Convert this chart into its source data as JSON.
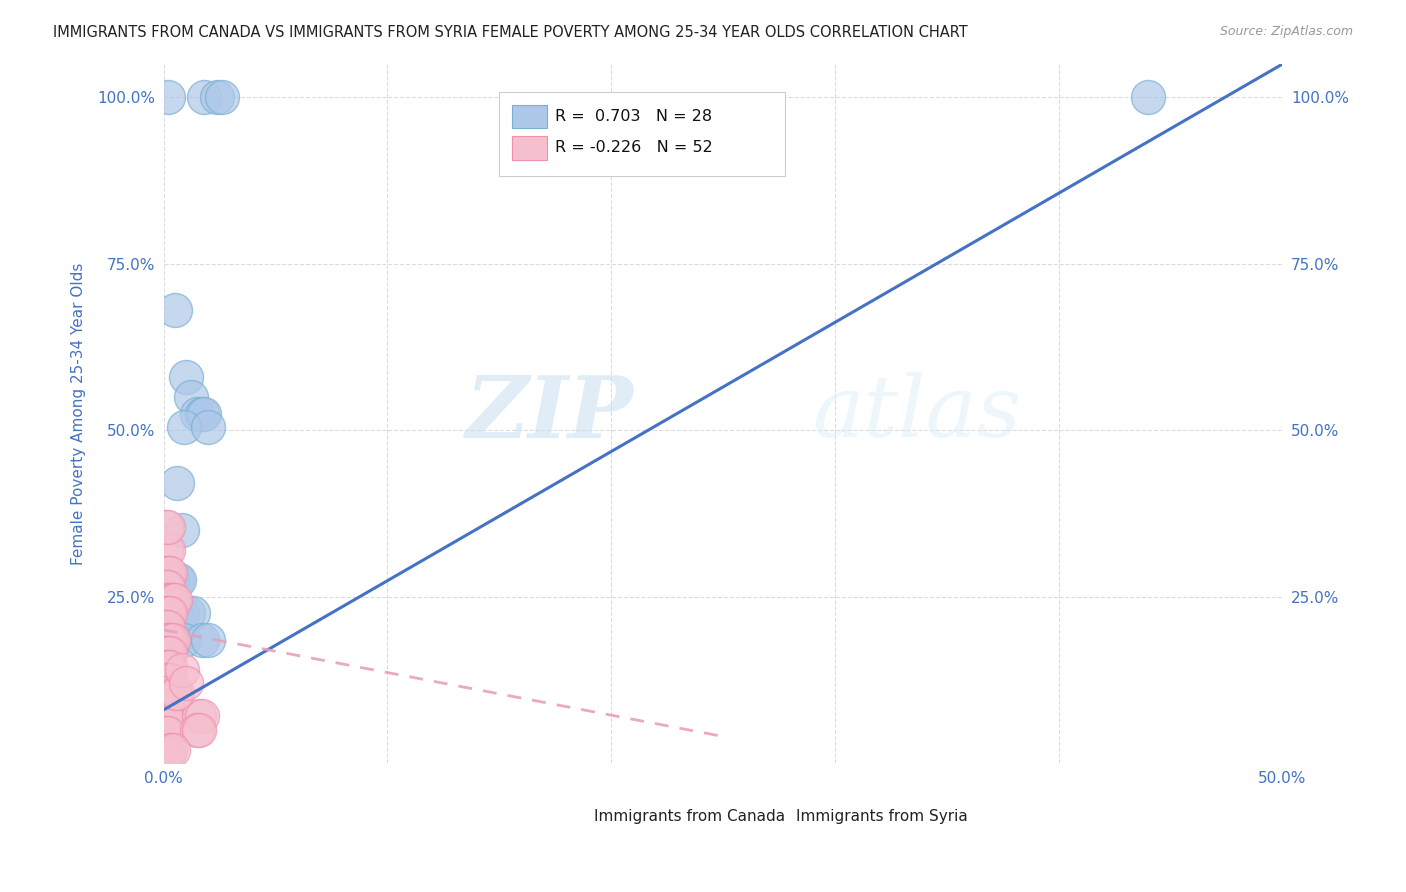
{
  "title": "IMMIGRANTS FROM CANADA VS IMMIGRANTS FROM SYRIA FEMALE POVERTY AMONG 25-34 YEAR OLDS CORRELATION CHART",
  "source": "Source: ZipAtlas.com",
  "ylabel": "Female Poverty Among 25-34 Year Olds",
  "xlim": [
    0.0,
    0.5
  ],
  "ylim": [
    0.0,
    1.05
  ],
  "xticks": [
    0.0,
    0.1,
    0.2,
    0.3,
    0.4,
    0.5
  ],
  "yticks": [
    0.0,
    0.25,
    0.5,
    0.75,
    1.0
  ],
  "xtick_labels": [
    "0.0%",
    "",
    "",
    "",
    "",
    "50.0%"
  ],
  "ytick_labels": [
    "",
    "25.0%",
    "50.0%",
    "75.0%",
    "100.0%"
  ],
  "legend_canada_label": "Immigrants from Canada",
  "legend_syria_label": "Immigrants from Syria",
  "canada_R": "0.703",
  "canada_N": "28",
  "syria_R": "-0.226",
  "syria_N": "52",
  "canada_color": "#adc8e8",
  "canada_edge": "#7aafd4",
  "syria_color": "#f5bfce",
  "syria_edge": "#f090ae",
  "canada_line_color": "#4472c4",
  "syria_line_color": "#e8a0b8",
  "watermark_zip": "ZIP",
  "watermark_atlas": "atlas",
  "canada_points": [
    [
      0.002,
      1.0
    ],
    [
      0.018,
      1.0
    ],
    [
      0.024,
      1.0
    ],
    [
      0.026,
      1.0
    ],
    [
      0.005,
      0.68
    ],
    [
      0.01,
      0.58
    ],
    [
      0.012,
      0.55
    ],
    [
      0.015,
      0.525
    ],
    [
      0.017,
      0.525
    ],
    [
      0.018,
      0.525
    ],
    [
      0.009,
      0.505
    ],
    [
      0.02,
      0.505
    ],
    [
      0.006,
      0.42
    ],
    [
      0.008,
      0.35
    ],
    [
      0.004,
      0.275
    ],
    [
      0.006,
      0.275
    ],
    [
      0.007,
      0.275
    ],
    [
      0.002,
      0.225
    ],
    [
      0.003,
      0.225
    ],
    [
      0.005,
      0.225
    ],
    [
      0.008,
      0.225
    ],
    [
      0.011,
      0.225
    ],
    [
      0.013,
      0.225
    ],
    [
      0.003,
      0.185
    ],
    [
      0.005,
      0.185
    ],
    [
      0.009,
      0.185
    ],
    [
      0.017,
      0.185
    ],
    [
      0.02,
      0.185
    ]
  ],
  "canada_outlier": [
    0.44,
    1.0
  ],
  "syria_points": [
    [
      0.001,
      0.32
    ],
    [
      0.002,
      0.32
    ],
    [
      0.001,
      0.285
    ],
    [
      0.002,
      0.285
    ],
    [
      0.003,
      0.285
    ],
    [
      0.001,
      0.265
    ],
    [
      0.002,
      0.265
    ],
    [
      0.001,
      0.245
    ],
    [
      0.002,
      0.245
    ],
    [
      0.003,
      0.245
    ],
    [
      0.004,
      0.245
    ],
    [
      0.005,
      0.245
    ],
    [
      0.001,
      0.225
    ],
    [
      0.002,
      0.225
    ],
    [
      0.003,
      0.225
    ],
    [
      0.001,
      0.205
    ],
    [
      0.002,
      0.205
    ],
    [
      0.001,
      0.185
    ],
    [
      0.002,
      0.185
    ],
    [
      0.003,
      0.185
    ],
    [
      0.004,
      0.185
    ],
    [
      0.001,
      0.165
    ],
    [
      0.002,
      0.165
    ],
    [
      0.003,
      0.165
    ],
    [
      0.001,
      0.145
    ],
    [
      0.002,
      0.145
    ],
    [
      0.003,
      0.145
    ],
    [
      0.001,
      0.125
    ],
    [
      0.002,
      0.125
    ],
    [
      0.003,
      0.125
    ],
    [
      0.001,
      0.105
    ],
    [
      0.002,
      0.105
    ],
    [
      0.001,
      0.085
    ],
    [
      0.002,
      0.085
    ],
    [
      0.001,
      0.065
    ],
    [
      0.002,
      0.065
    ],
    [
      0.001,
      0.045
    ],
    [
      0.002,
      0.045
    ],
    [
      0.016,
      0.07
    ],
    [
      0.017,
      0.07
    ],
    [
      0.015,
      0.05
    ],
    [
      0.016,
      0.05
    ],
    [
      0.001,
      0.015
    ],
    [
      0.002,
      0.015
    ],
    [
      0.001,
      0.355
    ],
    [
      0.002,
      0.355
    ],
    [
      0.003,
      0.02
    ],
    [
      0.004,
      0.02
    ],
    [
      0.005,
      0.105
    ],
    [
      0.006,
      0.105
    ],
    [
      0.008,
      0.14
    ],
    [
      0.01,
      0.12
    ]
  ],
  "canada_trend": [
    0.0,
    0.5,
    0.08,
    1.05
  ],
  "syria_trend_x": [
    0.0,
    0.25
  ],
  "syria_trend_y": [
    0.2,
    0.04
  ],
  "background_color": "#ffffff",
  "grid_color": "#d8d8d8",
  "title_color": "#222222",
  "axis_color": "#4472c4",
  "tick_label_color_left": "#4472c4",
  "tick_label_color_right": "#4472c4"
}
